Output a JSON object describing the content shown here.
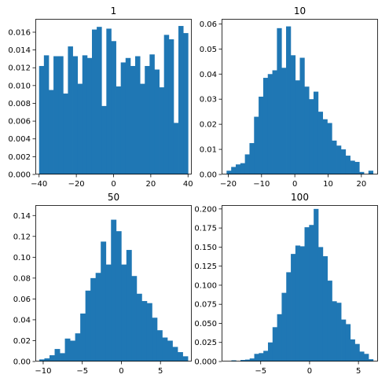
{
  "figure": {
    "background": "#ffffff",
    "bar_color": "#1f77b4",
    "axis_color": "#000000"
  },
  "chart_data": [
    {
      "type": "bar",
      "title": "1",
      "xlim": [
        -42,
        42
      ],
      "ylim": [
        0,
        0.0175
      ],
      "xticks": [
        -40,
        -20,
        0,
        20,
        40
      ],
      "xtick_labels": [
        "−40",
        "−20",
        "0",
        "20",
        "40"
      ],
      "yticks": [
        0,
        0.002,
        0.004,
        0.006,
        0.008,
        0.01,
        0.012,
        0.014,
        0.016
      ],
      "ytick_labels": [
        "0.000",
        "0.002",
        "0.004",
        "0.006",
        "0.008",
        "0.010",
        "0.012",
        "0.014",
        "0.016"
      ],
      "bin_start": -40,
      "bin_end": 40,
      "values": [
        0.0122,
        0.0134,
        0.0095,
        0.0133,
        0.0133,
        0.0091,
        0.0144,
        0.0133,
        0.0102,
        0.0134,
        0.0131,
        0.0163,
        0.0166,
        0.0077,
        0.0164,
        0.015,
        0.0099,
        0.0126,
        0.0131,
        0.0122,
        0.0133,
        0.0102,
        0.0122,
        0.0135,
        0.0118,
        0.0098,
        0.0157,
        0.0152,
        0.0058,
        0.0167,
        0.0159
      ]
    },
    {
      "type": "bar",
      "title": "10",
      "xlim": [
        -22,
        25
      ],
      "ylim": [
        0,
        0.062
      ],
      "xticks": [
        -20,
        -10,
        0,
        10,
        20
      ],
      "xtick_labels": [
        "−20",
        "−10",
        "0",
        "10",
        "20"
      ],
      "yticks": [
        0,
        0.01,
        0.02,
        0.03,
        0.04,
        0.05,
        0.06
      ],
      "ytick_labels": [
        "0.00",
        "0.01",
        "0.02",
        "0.03",
        "0.04",
        "0.05",
        "0.06"
      ],
      "bin_start": -20.5,
      "bin_end": 23.5,
      "values": [
        0.0015,
        0.003,
        0.004,
        0.0045,
        0.008,
        0.0125,
        0.023,
        0.031,
        0.0385,
        0.04,
        0.0415,
        0.0583,
        0.0425,
        0.059,
        0.0475,
        0.0375,
        0.0465,
        0.035,
        0.03,
        0.033,
        0.025,
        0.022,
        0.0205,
        0.0135,
        0.0115,
        0.01,
        0.0075,
        0.0055,
        0.005,
        0.001,
        0.0,
        0.0015
      ]
    },
    {
      "type": "bar",
      "title": "50",
      "xlim": [
        -11,
        9
      ],
      "ylim": [
        0,
        0.15
      ],
      "xticks": [
        -10,
        -5,
        0,
        5
      ],
      "xtick_labels": [
        "−10",
        "−5",
        "0",
        "5"
      ],
      "yticks": [
        0,
        0.02,
        0.04,
        0.06,
        0.08,
        0.1,
        0.12,
        0.14
      ],
      "ytick_labels": [
        "0.00",
        "0.02",
        "0.04",
        "0.06",
        "0.08",
        "0.10",
        "0.12",
        "0.14"
      ],
      "bin_start": -10.5,
      "bin_end": 8.5,
      "values": [
        0.002,
        0.003,
        0.006,
        0.012,
        0.008,
        0.022,
        0.02,
        0.027,
        0.046,
        0.068,
        0.08,
        0.085,
        0.115,
        0.093,
        0.136,
        0.125,
        0.093,
        0.107,
        0.082,
        0.065,
        0.058,
        0.056,
        0.042,
        0.03,
        0.023,
        0.02,
        0.014,
        0.009,
        0.005
      ]
    },
    {
      "type": "bar",
      "title": "100",
      "xlim": [
        -9,
        7
      ],
      "ylim": [
        0,
        0.205
      ],
      "xticks": [
        -5,
        0,
        5
      ],
      "xtick_labels": [
        "−5",
        "0",
        "5"
      ],
      "yticks": [
        0,
        0.025,
        0.05,
        0.075,
        0.1,
        0.125,
        0.15,
        0.175,
        0.2
      ],
      "ytick_labels": [
        "0.000",
        "0.025",
        "0.050",
        "0.075",
        "0.100",
        "0.125",
        "0.150",
        "0.175",
        "0.200"
      ],
      "bin_start": -8.0,
      "bin_end": 6.5,
      "values": [
        0.0015,
        0.0,
        0.002,
        0.0025,
        0.004,
        0.01,
        0.011,
        0.014,
        0.025,
        0.045,
        0.062,
        0.09,
        0.117,
        0.141,
        0.152,
        0.151,
        0.176,
        0.179,
        0.2,
        0.15,
        0.138,
        0.106,
        0.079,
        0.077,
        0.055,
        0.049,
        0.029,
        0.023,
        0.013,
        0.01,
        0.003
      ]
    }
  ]
}
